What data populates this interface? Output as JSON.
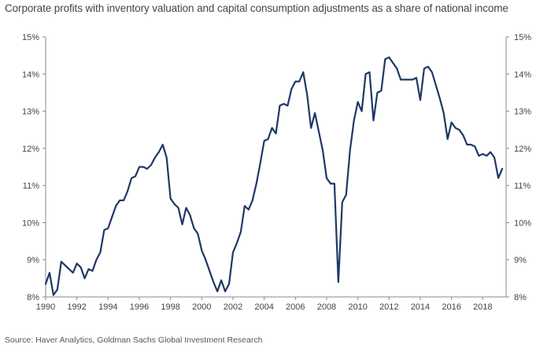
{
  "chart_data": {
    "type": "line",
    "title": "Corporate profits with inventory valuation and capital consumption adjustments as a share of national income",
    "source": "Source: Haver Analytics, Goldman Sachs Global Investment Research",
    "xlabel": "",
    "ylabel": "",
    "xlim": [
      1990,
      2019.5
    ],
    "ylim": [
      8,
      15
    ],
    "x_ticks": [
      1990,
      1992,
      1994,
      1996,
      1998,
      2000,
      2002,
      2004,
      2006,
      2008,
      2010,
      2012,
      2014,
      2016,
      2018
    ],
    "y_ticks": [
      8,
      9,
      10,
      11,
      12,
      13,
      14,
      15
    ],
    "y_tick_labels": [
      "8%",
      "9%",
      "10%",
      "11%",
      "12%",
      "13%",
      "14%",
      "15%"
    ],
    "grid": false,
    "series": [
      {
        "name": "Corporate profits share of national income",
        "color": "#1f3864",
        "x": [
          1990.0,
          1990.25,
          1990.5,
          1990.75,
          1991.0,
          1991.25,
          1991.5,
          1991.75,
          1992.0,
          1992.25,
          1992.5,
          1992.75,
          1993.0,
          1993.25,
          1993.5,
          1993.75,
          1994.0,
          1994.25,
          1994.5,
          1994.75,
          1995.0,
          1995.25,
          1995.5,
          1995.75,
          1996.0,
          1996.25,
          1996.5,
          1996.75,
          1997.0,
          1997.25,
          1997.5,
          1997.75,
          1998.0,
          1998.25,
          1998.5,
          1998.75,
          1999.0,
          1999.25,
          1999.5,
          1999.75,
          2000.0,
          2000.25,
          2000.5,
          2000.75,
          2001.0,
          2001.25,
          2001.5,
          2001.75,
          2002.0,
          2002.25,
          2002.5,
          2002.75,
          2003.0,
          2003.25,
          2003.5,
          2003.75,
          2004.0,
          2004.25,
          2004.5,
          2004.75,
          2005.0,
          2005.25,
          2005.5,
          2005.75,
          2006.0,
          2006.25,
          2006.5,
          2006.75,
          2007.0,
          2007.25,
          2007.5,
          2007.75,
          2008.0,
          2008.25,
          2008.5,
          2008.75,
          2009.0,
          2009.25,
          2009.5,
          2009.75,
          2010.0,
          2010.25,
          2010.5,
          2010.75,
          2011.0,
          2011.25,
          2011.5,
          2011.75,
          2012.0,
          2012.25,
          2012.5,
          2012.75,
          2013.0,
          2013.25,
          2013.5,
          2013.75,
          2014.0,
          2014.25,
          2014.5,
          2014.75,
          2015.0,
          2015.25,
          2015.5,
          2015.75,
          2016.0,
          2016.25,
          2016.5,
          2016.75,
          2017.0,
          2017.25,
          2017.5,
          2017.75,
          2018.0,
          2018.25,
          2018.5,
          2018.75,
          2019.0,
          2019.25
        ],
        "values": [
          8.35,
          8.65,
          8.05,
          8.2,
          8.95,
          8.85,
          8.75,
          8.65,
          8.9,
          8.8,
          8.5,
          8.75,
          8.7,
          9.0,
          9.2,
          9.8,
          9.85,
          10.15,
          10.45,
          10.6,
          10.6,
          10.85,
          11.2,
          11.25,
          11.5,
          11.5,
          11.45,
          11.55,
          11.75,
          11.9,
          12.1,
          11.75,
          10.65,
          10.5,
          10.4,
          9.95,
          10.4,
          10.2,
          9.85,
          9.7,
          9.25,
          9.0,
          8.7,
          8.4,
          8.15,
          8.45,
          8.15,
          8.35,
          9.2,
          9.45,
          9.75,
          10.45,
          10.35,
          10.6,
          11.05,
          11.6,
          12.2,
          12.25,
          12.55,
          12.4,
          13.15,
          13.2,
          13.15,
          13.6,
          13.8,
          13.8,
          14.05,
          13.45,
          12.55,
          12.95,
          12.45,
          11.95,
          11.2,
          11.05,
          11.05,
          8.4,
          10.55,
          10.75,
          11.95,
          12.75,
          13.25,
          13.0,
          14.0,
          14.05,
          12.75,
          13.5,
          13.55,
          14.4,
          14.45,
          14.3,
          14.15,
          13.85,
          13.85,
          13.85,
          13.85,
          13.9,
          13.3,
          14.15,
          14.2,
          14.05,
          13.7,
          13.35,
          12.95,
          12.25,
          12.7,
          12.55,
          12.5,
          12.35,
          12.1,
          12.1,
          12.05,
          11.8,
          11.85,
          11.8,
          11.9,
          11.75,
          11.2,
          11.45
        ]
      }
    ]
  }
}
